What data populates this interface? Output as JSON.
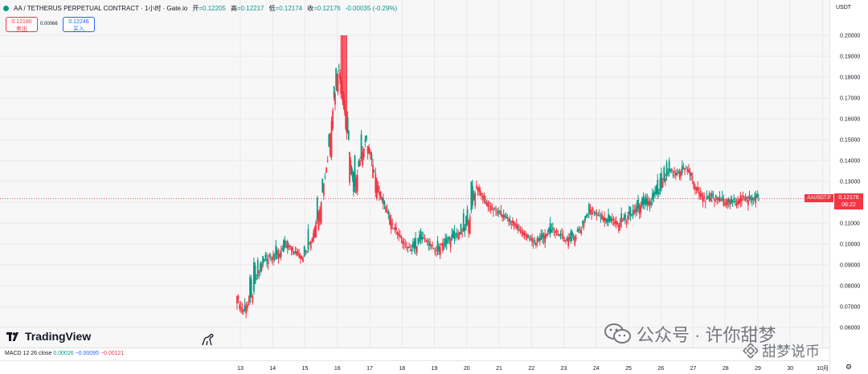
{
  "header": {
    "symbol_title": "AA / TETHERUS PERPETUAL CONTRACT · 1小时 · Gate.io",
    "open_label": "开",
    "open_value": "=0.12205",
    "high_label": "高",
    "high_value": "=0.12217",
    "low_label": "低",
    "low_value": "=0.12174",
    "close_label": "收",
    "close_value": "=0.12176",
    "change": "-0.00035 (-0.29%)"
  },
  "trade": {
    "sell_price": "0.12180",
    "sell_label": "卖出",
    "spread": "0.00066",
    "buy_price": "0.12246",
    "buy_label": "买入"
  },
  "branding": {
    "logo_text": "TradingView"
  },
  "macd": {
    "label": "MACD 12 26 close",
    "v1": "0.00026",
    "v2": "−0.00095",
    "v3": "−0.00121"
  },
  "axis": {
    "currency": "USDT",
    "price_ticks": [
      "0.20000",
      "0.19000",
      "0.18000",
      "0.17000",
      "0.16000",
      "0.15000",
      "0.14000",
      "0.13000",
      "0.12000",
      "0.11000",
      "0.10000",
      "0.09000",
      "0.08000",
      "0.07000",
      "0.06000"
    ],
    "time_ticks": [
      "13",
      "14",
      "15",
      "16",
      "17",
      "18",
      "19",
      "20",
      "21",
      "22",
      "23",
      "24",
      "25",
      "26",
      "27",
      "28",
      "29",
      "30",
      "10月"
    ]
  },
  "last_price": {
    "symbol": "AAUSDT.P",
    "price": "0.12176",
    "countdown": "06:22"
  },
  "watermark": {
    "line1": "公众号 · 许你甜梦",
    "line2": "甜梦说币"
  },
  "colors": {
    "up": "#089981",
    "down": "#f23645",
    "accent": "#2962ff"
  },
  "chart_data": {
    "type": "candlestick",
    "x_unit": "day",
    "ylim": [
      0.058,
      0.202
    ],
    "x": [
      12.9,
      13.1,
      13.3,
      13.5,
      13.7,
      13.9,
      14.1,
      14.3,
      14.5,
      14.7,
      14.9,
      15.1,
      15.3,
      15.5,
      15.7,
      15.9,
      16.05,
      16.2,
      16.35,
      16.5,
      16.7,
      16.9,
      17.1,
      17.3,
      17.5,
      17.7,
      17.9,
      18.1,
      18.3,
      18.5,
      18.7,
      18.9,
      19.1,
      19.3,
      19.5,
      19.7,
      19.9,
      20.1,
      20.3,
      20.5,
      20.7,
      20.9,
      21.1,
      21.3,
      21.5,
      21.7,
      21.9,
      22.1,
      22.3,
      22.5,
      22.7,
      22.9,
      23.1,
      23.3,
      23.5,
      23.7,
      23.9,
      24.1,
      24.3,
      24.5,
      24.7,
      24.9,
      25.1,
      25.3,
      25.5,
      25.7,
      25.9,
      26.1,
      26.3,
      26.5,
      26.7,
      26.9,
      27.1,
      27.3,
      27.5,
      27.7,
      27.9,
      28.1,
      28.3,
      28.5,
      28.7,
      28.9,
      29.05
    ],
    "close": [
      0.075,
      0.068,
      0.072,
      0.083,
      0.09,
      0.095,
      0.093,
      0.097,
      0.099,
      0.096,
      0.094,
      0.097,
      0.108,
      0.12,
      0.14,
      0.17,
      0.185,
      0.172,
      0.15,
      0.125,
      0.14,
      0.15,
      0.138,
      0.125,
      0.118,
      0.11,
      0.105,
      0.1,
      0.097,
      0.1,
      0.103,
      0.099,
      0.097,
      0.1,
      0.102,
      0.104,
      0.106,
      0.113,
      0.128,
      0.123,
      0.118,
      0.116,
      0.114,
      0.112,
      0.109,
      0.106,
      0.103,
      0.101,
      0.102,
      0.105,
      0.107,
      0.104,
      0.102,
      0.103,
      0.106,
      0.113,
      0.117,
      0.114,
      0.111,
      0.112,
      0.109,
      0.112,
      0.114,
      0.117,
      0.119,
      0.12,
      0.124,
      0.13,
      0.135,
      0.133,
      0.136,
      0.135,
      0.127,
      0.122,
      0.121,
      0.122,
      0.121,
      0.12,
      0.12,
      0.122,
      0.121,
      0.122,
      0.12176
    ]
  }
}
